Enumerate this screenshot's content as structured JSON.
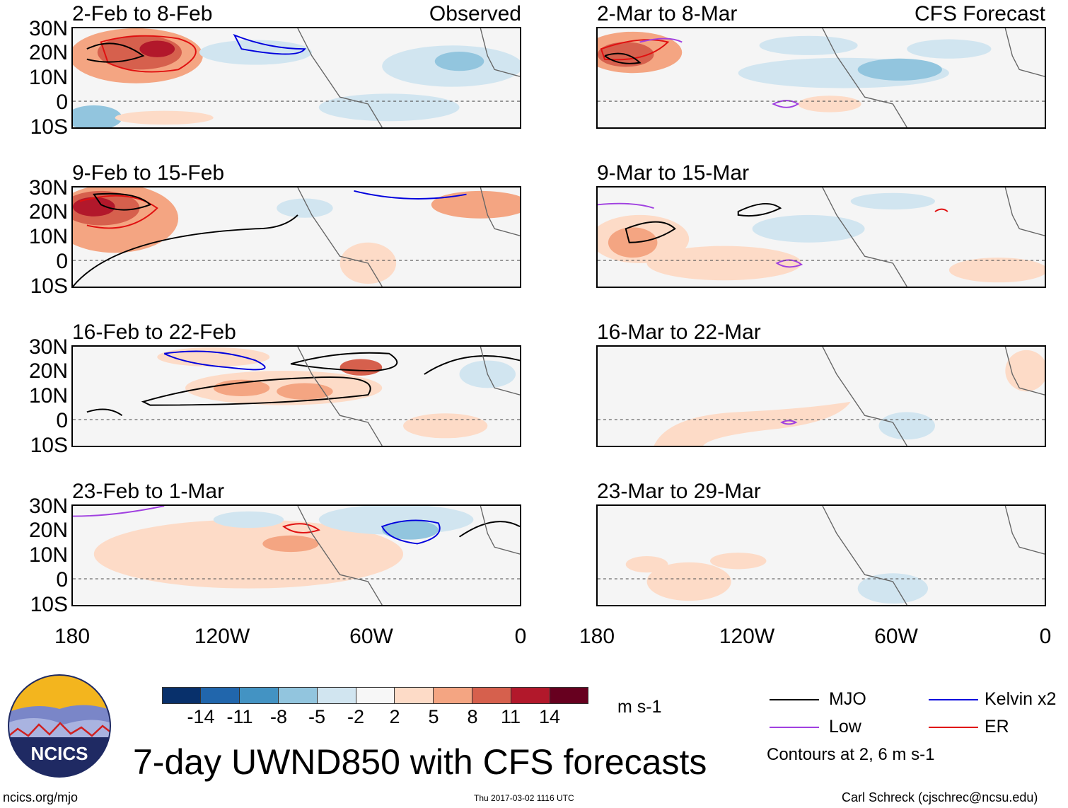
{
  "title": "7-day UWND850 with CFS forecasts",
  "units": "m s-1",
  "headers": {
    "observed": "Observed",
    "forecast": "CFS Forecast"
  },
  "y_axis_labels": [
    "30N",
    "20N",
    "10N",
    "0",
    "10S"
  ],
  "x_axis_labels": [
    "180",
    "120W",
    "60W",
    "0"
  ],
  "panels_observed": [
    {
      "title": "2-Feb to 8-Feb"
    },
    {
      "title": "9-Feb to 15-Feb"
    },
    {
      "title": "16-Feb to 22-Feb"
    },
    {
      "title": "23-Feb to 1-Mar"
    }
  ],
  "panels_forecast": [
    {
      "title": "2-Mar to 8-Mar"
    },
    {
      "title": "9-Mar to 15-Mar"
    },
    {
      "title": "16-Mar to 22-Mar"
    },
    {
      "title": "23-Mar to 29-Mar"
    }
  ],
  "colorbar": {
    "ticks": [
      "-14",
      "-11",
      "-8",
      "-5",
      "-2",
      "2",
      "5",
      "8",
      "11",
      "14"
    ],
    "colors": [
      "#08306b",
      "#2166ac",
      "#4393c3",
      "#92c5de",
      "#d1e5f0",
      "#f7f7f7",
      "#fddbc7",
      "#f4a582",
      "#d6604d",
      "#b2182b",
      "#67001f"
    ]
  },
  "legend": {
    "items": [
      {
        "label": "MJO",
        "color": "#000000"
      },
      {
        "label": "Kelvin x2",
        "color": "#0000dd"
      },
      {
        "label": "Low",
        "color": "#a040e0"
      },
      {
        "label": "ER",
        "color": "#e01010"
      }
    ],
    "note": "Contours at 2, 6 m s-1"
  },
  "logo_text": "NCICS",
  "footer": {
    "left": "ncics.org/mjo",
    "center": "Thu 2017-03-02 1116 UTC",
    "right": "Carl Schreck (cjschrec@ncsu.edu)"
  }
}
